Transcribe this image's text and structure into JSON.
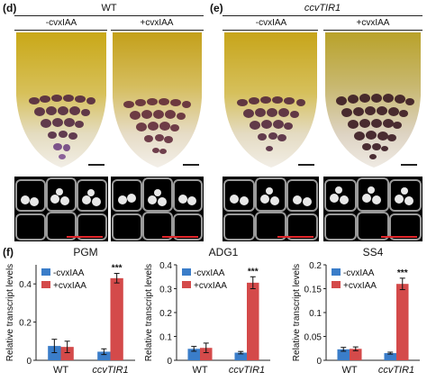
{
  "figure": {
    "panel_d": {
      "letter": "(d)",
      "genotype": "WT",
      "treatments": [
        "-cvxIAA",
        "+cvxIAA"
      ]
    },
    "panel_e": {
      "letter": "(e)",
      "genotype": "ccvTIR1",
      "treatments": [
        "-cvxIAA",
        "+cvxIAA"
      ]
    },
    "panel_f": {
      "letter": "(f)"
    }
  },
  "chart_data": [
    {
      "type": "bar",
      "title": "PGM",
      "ylabel": "Relative transcript levels",
      "categories": [
        "WT",
        "ccvTIR1"
      ],
      "series": [
        {
          "name": "-cvxIAA",
          "values": [
            0.075,
            0.045
          ],
          "errors": [
            0.035,
            0.015
          ]
        },
        {
          "name": "+cvxIAA",
          "values": [
            0.07,
            0.43
          ],
          "errors": [
            0.03,
            0.025
          ]
        }
      ],
      "ylim": [
        0,
        0.5
      ],
      "yticks": [
        "0",
        "0.2",
        "0.4"
      ],
      "significance": "***",
      "colors": [
        "#3a7dc9",
        "#d44a4a"
      ],
      "legend": "top-left"
    },
    {
      "type": "bar",
      "title": "ADG1",
      "ylabel": "Relative transcript levels",
      "categories": [
        "WT",
        "ccvTIR1"
      ],
      "series": [
        {
          "name": "-cvxIAA",
          "values": [
            0.048,
            0.032
          ],
          "errors": [
            0.01,
            0.005
          ]
        },
        {
          "name": "+cvxIAA",
          "values": [
            0.052,
            0.325
          ],
          "errors": [
            0.02,
            0.025
          ]
        }
      ],
      "ylim": [
        0,
        0.4
      ],
      "yticks": [
        "0",
        "0.1",
        "0.2",
        "0.3",
        "0.4"
      ],
      "significance": "***",
      "colors": [
        "#3a7dc9",
        "#d44a4a"
      ],
      "legend": "top-left"
    },
    {
      "type": "bar",
      "title": "SS4",
      "ylabel": "Relative transcript levels",
      "categories": [
        "WT",
        "ccvTIR1"
      ],
      "series": [
        {
          "name": "-cvxIAA",
          "values": [
            0.023,
            0.015
          ],
          "errors": [
            0.004,
            0.002
          ]
        },
        {
          "name": "+cvxIAA",
          "values": [
            0.024,
            0.16
          ],
          "errors": [
            0.004,
            0.012
          ]
        }
      ],
      "ylim": [
        0,
        0.2
      ],
      "yticks": [
        "0",
        "0.05",
        "0.1",
        "0.15",
        "0.2"
      ],
      "significance": "***",
      "colors": [
        "#3a7dc9",
        "#d44a4a"
      ],
      "legend": "top-left"
    }
  ]
}
